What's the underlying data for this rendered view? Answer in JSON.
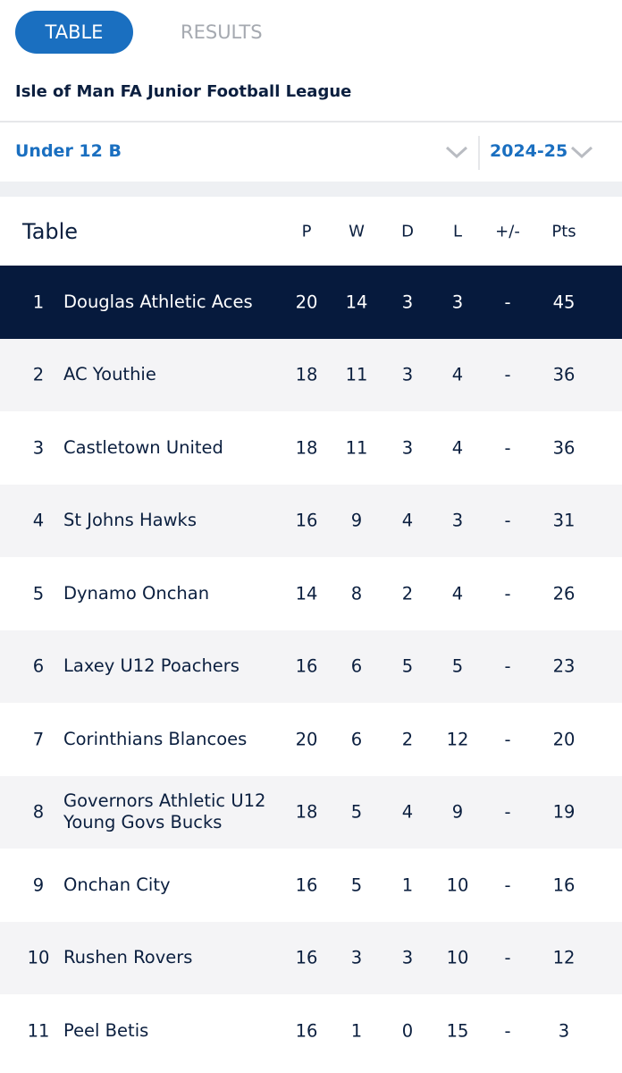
{
  "tabs": [
    "TABLE",
    "RESULTS"
  ],
  "league": "Isle of Man FA Junior Football League",
  "filters": {
    "division": "Under 12 B",
    "season": "2024-25"
  },
  "table": {
    "title": "Table",
    "columns": [
      "P",
      "W",
      "D",
      "L",
      "+/-",
      "Pts"
    ],
    "rows": [
      {
        "pos": 1,
        "team": "Douglas Athletic Aces",
        "stats": [
          20,
          14,
          3,
          3,
          "-",
          45
        ]
      },
      {
        "pos": 2,
        "team": "AC Youthie",
        "stats": [
          18,
          11,
          3,
          4,
          "-",
          36
        ]
      },
      {
        "pos": 3,
        "team": "Castletown United",
        "stats": [
          18,
          11,
          3,
          4,
          "-",
          36
        ]
      },
      {
        "pos": 4,
        "team": "St Johns Hawks",
        "stats": [
          16,
          9,
          4,
          3,
          "-",
          31
        ]
      },
      {
        "pos": 5,
        "team": "Dynamo Onchan",
        "stats": [
          14,
          8,
          2,
          4,
          "-",
          26
        ]
      },
      {
        "pos": 6,
        "team": "Laxey U12 Poachers",
        "stats": [
          16,
          6,
          5,
          5,
          "-",
          23
        ]
      },
      {
        "pos": 7,
        "team": "Corinthians Blancoes",
        "stats": [
          20,
          6,
          2,
          12,
          "-",
          20
        ]
      },
      {
        "pos": 8,
        "team": "Governors Athletic U12 Young Govs Bucks",
        "stats": [
          18,
          5,
          4,
          9,
          "-",
          19
        ]
      },
      {
        "pos": 9,
        "team": "Onchan City",
        "stats": [
          16,
          5,
          1,
          10,
          "-",
          16
        ]
      },
      {
        "pos": 10,
        "team": "Rushen Rovers",
        "stats": [
          16,
          3,
          3,
          10,
          "-",
          12
        ]
      },
      {
        "pos": 11,
        "team": "Peel Betis",
        "stats": [
          16,
          1,
          0,
          15,
          "-",
          3
        ]
      }
    ]
  }
}
